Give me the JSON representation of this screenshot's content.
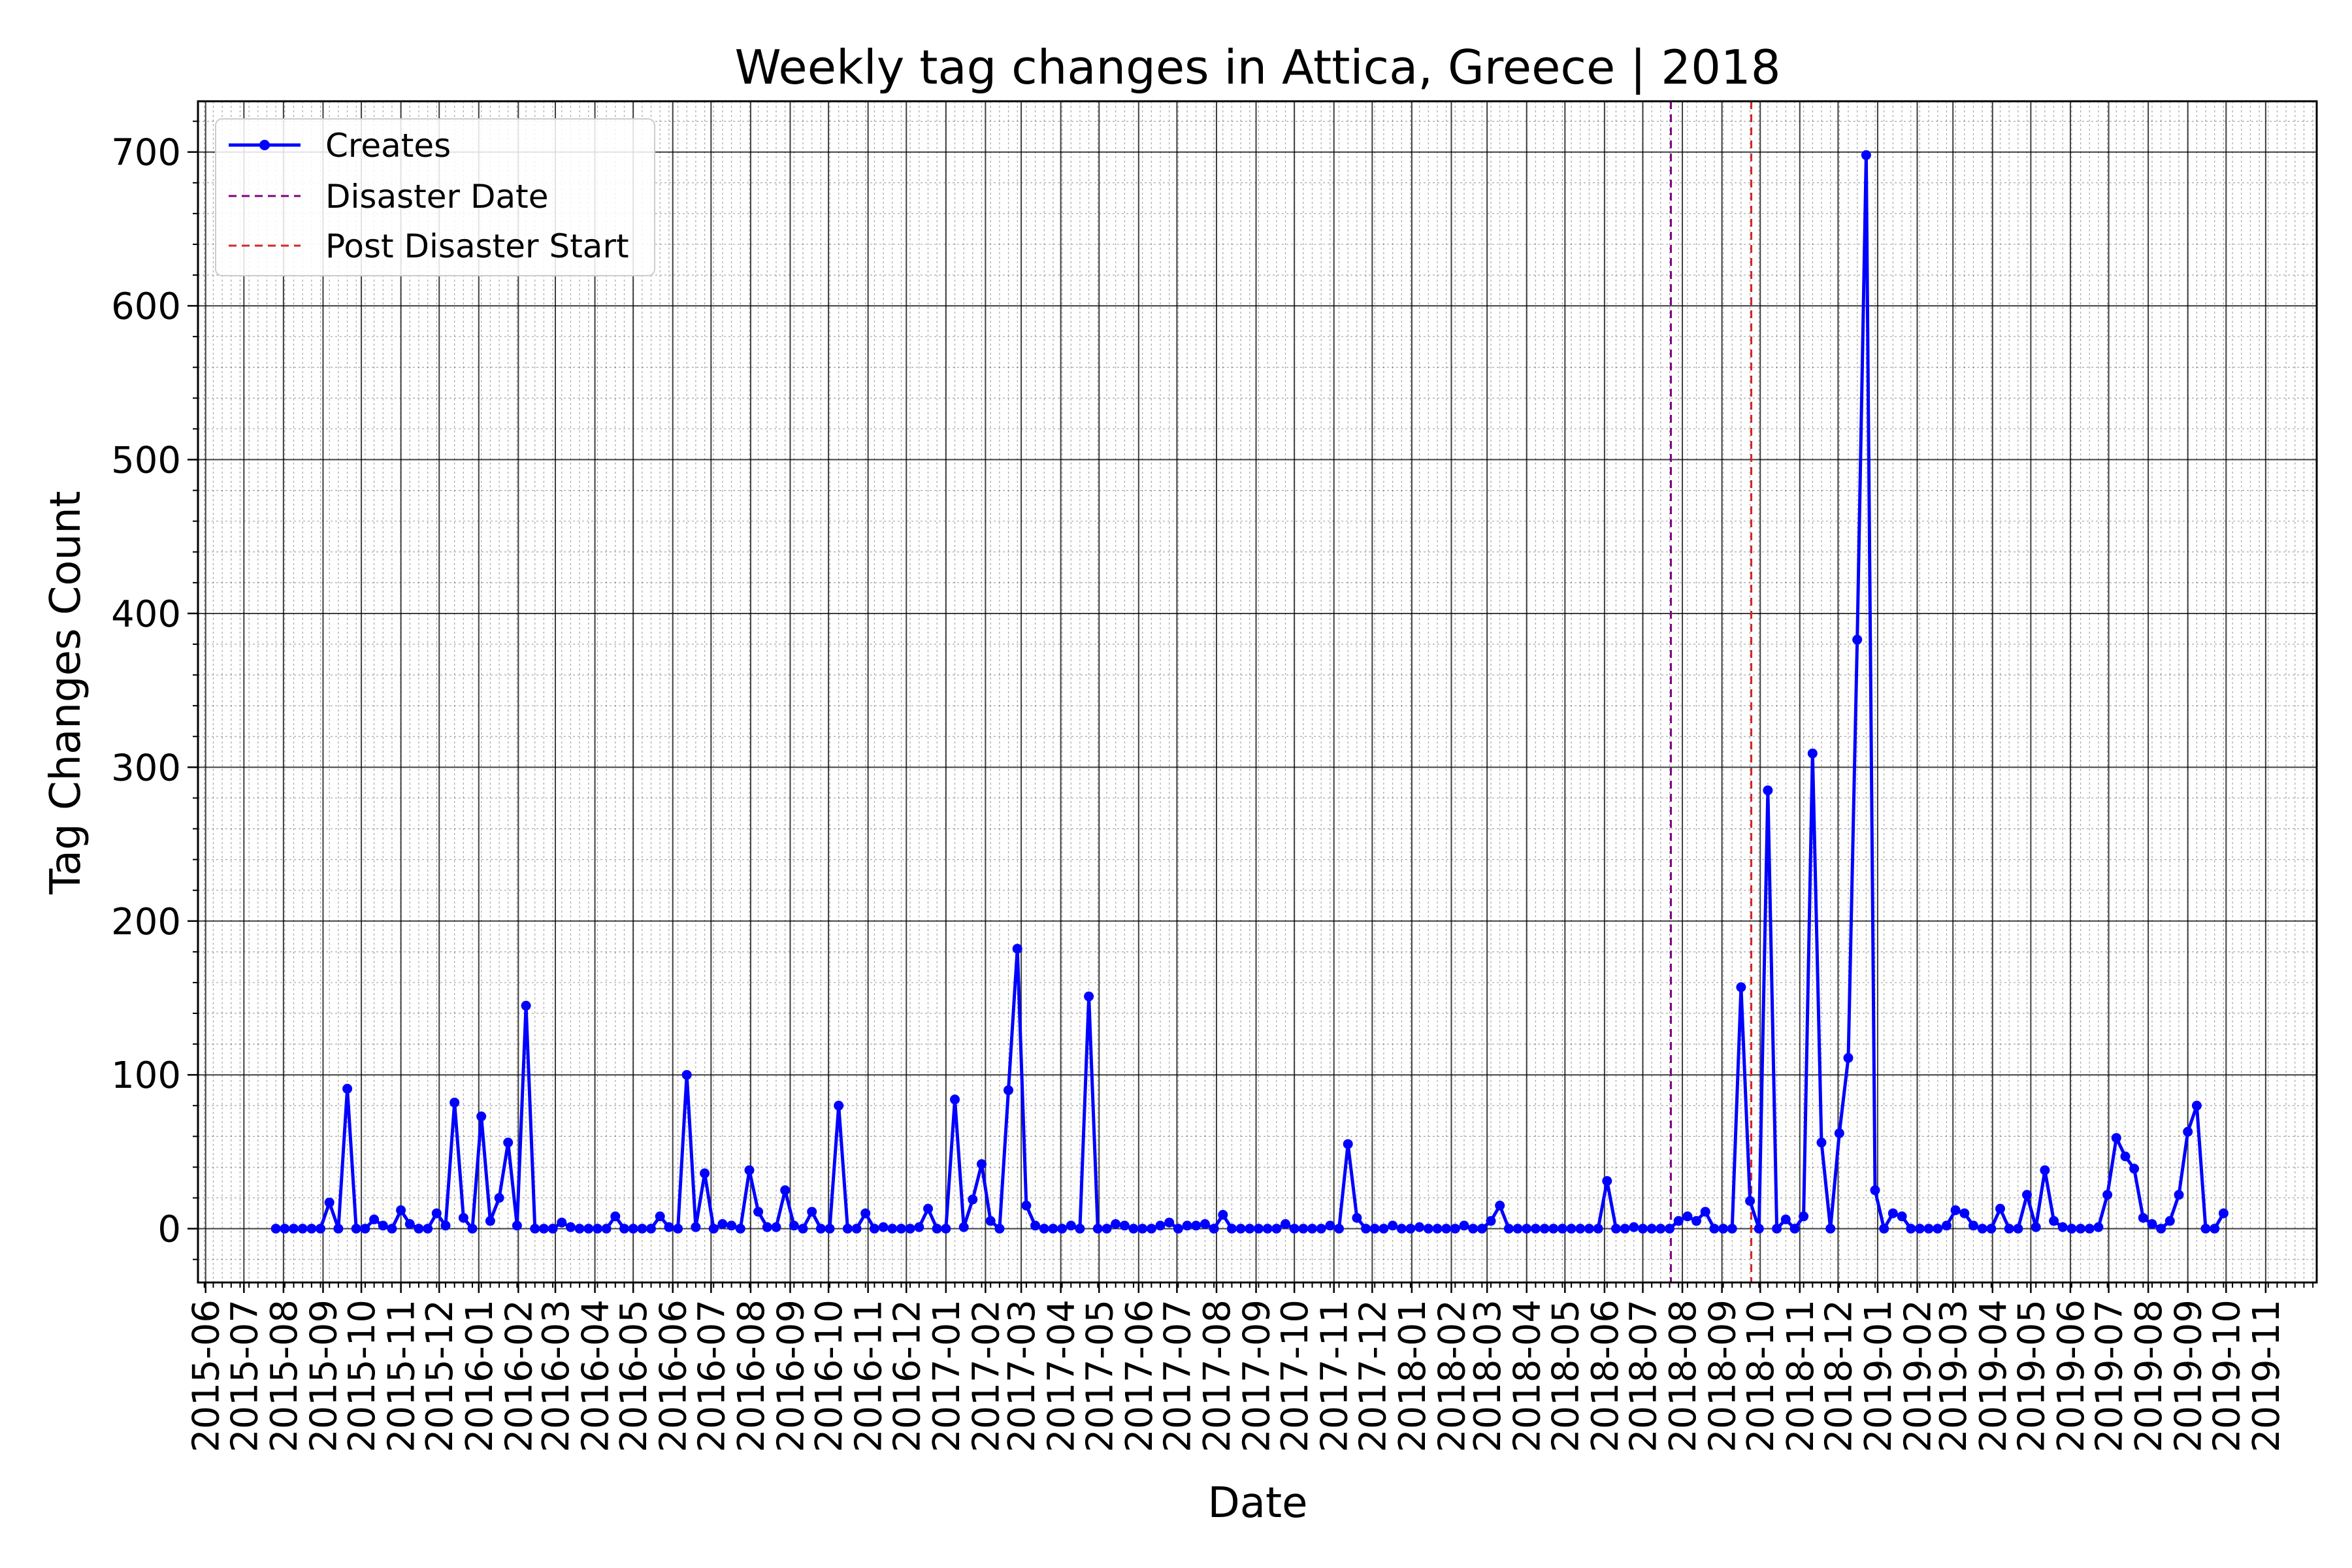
{
  "chart_data": {
    "type": "line",
    "title": "Weekly tag changes in Attica, Greece | 2018",
    "xlabel": "Date",
    "ylabel": "Tag Changes Count",
    "ylim": [
      -35,
      733
    ],
    "yticks": [
      0,
      100,
      200,
      300,
      400,
      500,
      600,
      700
    ],
    "xlim": [
      "2015-05-26",
      "2019-12-11"
    ],
    "xtick_labels": [
      "2015-06",
      "2015-07",
      "2015-08",
      "2015-09",
      "2015-10",
      "2015-11",
      "2015-12",
      "2016-01",
      "2016-02",
      "2016-03",
      "2016-04",
      "2016-05",
      "2016-06",
      "2016-07",
      "2016-08",
      "2016-09",
      "2016-10",
      "2016-11",
      "2016-12",
      "2017-01",
      "2017-02",
      "2017-03",
      "2017-04",
      "2017-05",
      "2017-06",
      "2017-07",
      "2017-08",
      "2017-09",
      "2017-10",
      "2017-11",
      "2017-12",
      "2018-01",
      "2018-02",
      "2018-03",
      "2018-04",
      "2018-05",
      "2018-06",
      "2018-07",
      "2018-08",
      "2018-09",
      "2018-10",
      "2018-11",
      "2018-12",
      "2019-01",
      "2019-02",
      "2019-03",
      "2019-04",
      "2019-05",
      "2019-06",
      "2019-07",
      "2019-08",
      "2019-09",
      "2019-10",
      "2019-11"
    ],
    "grid": true,
    "legend_position": "upper-left",
    "series": [
      {
        "name": "Creates",
        "color": "#0000ff",
        "marker": "circle",
        "start_date": "2015-07-26",
        "interval_days": 7,
        "values": [
          0,
          0,
          0,
          0,
          0,
          0,
          17,
          0,
          91,
          0,
          0,
          6,
          2,
          0,
          12,
          3,
          0,
          0,
          10,
          2,
          82,
          7,
          0,
          73,
          5,
          20,
          56,
          2,
          145,
          0,
          0,
          0,
          4,
          1,
          0,
          0,
          0,
          0,
          8,
          0,
          0,
          0,
          0,
          8,
          1,
          0,
          100,
          1,
          36,
          0,
          3,
          2,
          0,
          38,
          11,
          1,
          1,
          25,
          2,
          0,
          11,
          0,
          0,
          80,
          0,
          0,
          10,
          0,
          1,
          0,
          0,
          0,
          1,
          13,
          0,
          0,
          84,
          1,
          19,
          42,
          5,
          0,
          90,
          182,
          15,
          2,
          0,
          0,
          0,
          2,
          0,
          151,
          0,
          0,
          3,
          2,
          0,
          0,
          0,
          2,
          4,
          0,
          2,
          2,
          3,
          0,
          9,
          0,
          0,
          0,
          0,
          0,
          0,
          3,
          0,
          0,
          0,
          0,
          2,
          0,
          55,
          7,
          0,
          0,
          0,
          2,
          0,
          0,
          1,
          0,
          0,
          0,
          0,
          2,
          0,
          0,
          5,
          15,
          0,
          0,
          0,
          0,
          0,
          0,
          0,
          0,
          0,
          0,
          0,
          31,
          0,
          0,
          1,
          0,
          0,
          0,
          0,
          5,
          8,
          5,
          11,
          0,
          0,
          0,
          157,
          18,
          0,
          285,
          0,
          6,
          0,
          8,
          309,
          56,
          0,
          62,
          111,
          383,
          698,
          25,
          0,
          10,
          8,
          0,
          0,
          0,
          0,
          2,
          12,
          10,
          2,
          0,
          0,
          13,
          0,
          0,
          22,
          1,
          38,
          5,
          1,
          0,
          0,
          0,
          1,
          22,
          59,
          47,
          39,
          7,
          3,
          0,
          5,
          22,
          63,
          80,
          0,
          0,
          10
        ]
      },
      {
        "name": "Disaster Date",
        "color": "#800080",
        "type": "vline",
        "x": "2018-07-23"
      },
      {
        "name": "Post Disaster Start",
        "color": "#d62728",
        "type": "vline",
        "x": "2018-09-24"
      }
    ]
  }
}
